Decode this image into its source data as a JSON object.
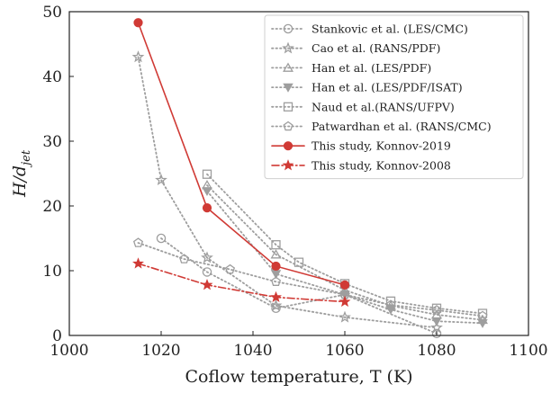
{
  "chart_data": {
    "type": "line",
    "xlabel": "Coflow temperature, T (K)",
    "ylabel": "H/d_jet",
    "xlim": [
      1000,
      1100
    ],
    "ylim": [
      0,
      50
    ],
    "xticks": [
      1000,
      1020,
      1040,
      1060,
      1080,
      1100
    ],
    "yticks": [
      0,
      10,
      20,
      30,
      40,
      50
    ],
    "xtick_labels": [
      "1000",
      "1020",
      "1040",
      "1060",
      "1080",
      "1100"
    ],
    "ytick_labels": [
      "0",
      "10",
      "20",
      "30",
      "40",
      "50"
    ],
    "grid": false,
    "legend_position": "top-right",
    "series": [
      {
        "name": "Stankovic et al. (LES/CMC)",
        "color": "#9e9e9e",
        "marker": "circle-open",
        "line": "dotted",
        "x": [
          1020,
          1030,
          1045,
          1060,
          1080
        ],
        "y": [
          15,
          9.8,
          4.2,
          6.3,
          0.3
        ]
      },
      {
        "name": "Cao et al. (RANS/PDF)",
        "color": "#9e9e9e",
        "marker": "star-open",
        "line": "dotted",
        "x": [
          1015,
          1020,
          1030,
          1045,
          1060,
          1080
        ],
        "y": [
          43,
          24,
          12,
          4.6,
          2.8,
          1.2
        ]
      },
      {
        "name": "Han et al. (LES/PDF)",
        "color": "#9e9e9e",
        "marker": "triangle-up-open",
        "line": "dotted",
        "x": [
          1030,
          1045,
          1060,
          1070,
          1080,
          1090
        ],
        "y": [
          23.2,
          12.5,
          7,
          4.6,
          3.2,
          2.4
        ]
      },
      {
        "name": "Han et al. (LES/PDF/ISAT)",
        "color": "#9e9e9e",
        "marker": "triangle-down-filled",
        "line": "dotted",
        "x": [
          1030,
          1045,
          1060,
          1070,
          1080,
          1090
        ],
        "y": [
          22.3,
          9.5,
          6.3,
          4,
          2.2,
          1.9
        ]
      },
      {
        "name": "Naud et al.(RANS/UFPV)",
        "color": "#9e9e9e",
        "marker": "square-open",
        "line": "dotted",
        "x": [
          1030,
          1045,
          1050,
          1060,
          1070,
          1080,
          1090
        ],
        "y": [
          24.9,
          14,
          11.3,
          8,
          5.3,
          4.2,
          3.4
        ]
      },
      {
        "name": "Patwardhan et al. (RANS/CMC)",
        "color": "#9e9e9e",
        "marker": "pentagon-open",
        "line": "dotted",
        "x": [
          1015,
          1025,
          1035,
          1045,
          1060,
          1070,
          1080,
          1090
        ],
        "y": [
          14.3,
          11.8,
          10.2,
          8.3,
          6.3,
          4.7,
          3.9,
          3
        ]
      },
      {
        "name": "This study, Konnov-2019",
        "color": "#d03a35",
        "marker": "circle-filled",
        "line": "solid",
        "x": [
          1015,
          1030,
          1045,
          1060
        ],
        "y": [
          48.3,
          19.7,
          10.7,
          7.8
        ]
      },
      {
        "name": "This study, Konnov-2008",
        "color": "#d03a35",
        "marker": "star-filled",
        "line": "dashdot",
        "x": [
          1015,
          1030,
          1045,
          1060
        ],
        "y": [
          11.1,
          7.8,
          5.9,
          5.2
        ]
      }
    ]
  }
}
